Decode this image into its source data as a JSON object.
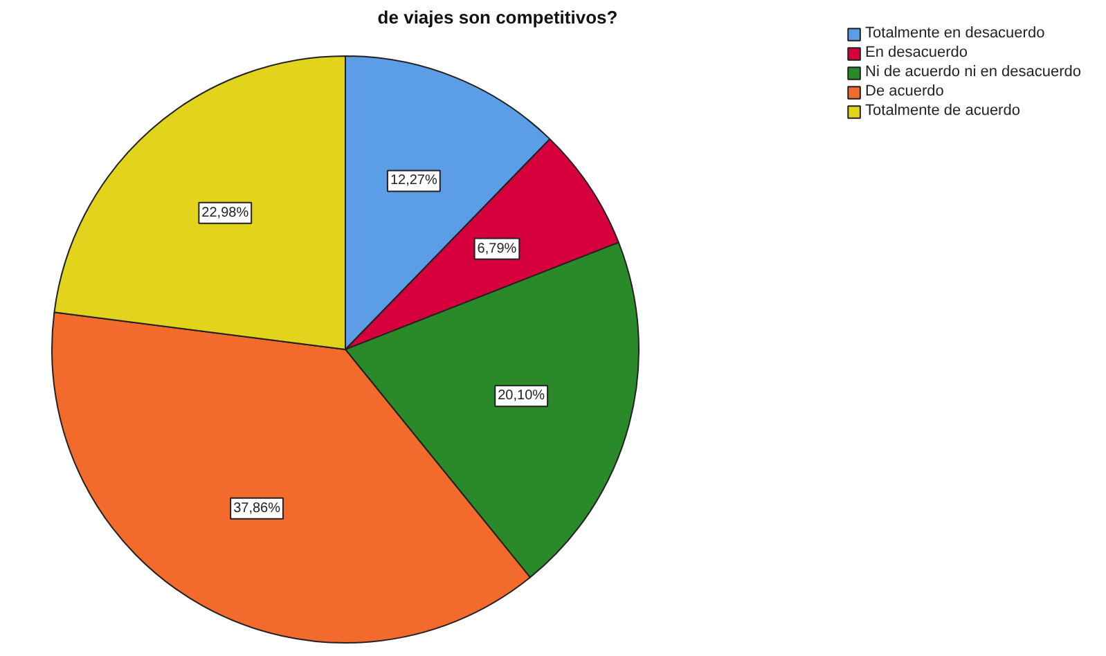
{
  "chart_data": {
    "type": "pie",
    "title": "de viajes son competitivos?",
    "categories": [
      "Totalmente en desacuerdo",
      "En desacuerdo",
      "Ni de acuerdo ni en desacuerdo",
      "De acuerdo",
      "Totalmente de acuerdo"
    ],
    "values": [
      12.27,
      6.79,
      20.1,
      37.86,
      22.98
    ],
    "colors": [
      "#5b9ee6",
      "#d6003c",
      "#2a8a2a",
      "#f26a2c",
      "#e2d31c"
    ],
    "value_labels": [
      "12,27%",
      "6,79%",
      "20,10%",
      "37,86%",
      "22,98%"
    ],
    "legend": "top right"
  }
}
